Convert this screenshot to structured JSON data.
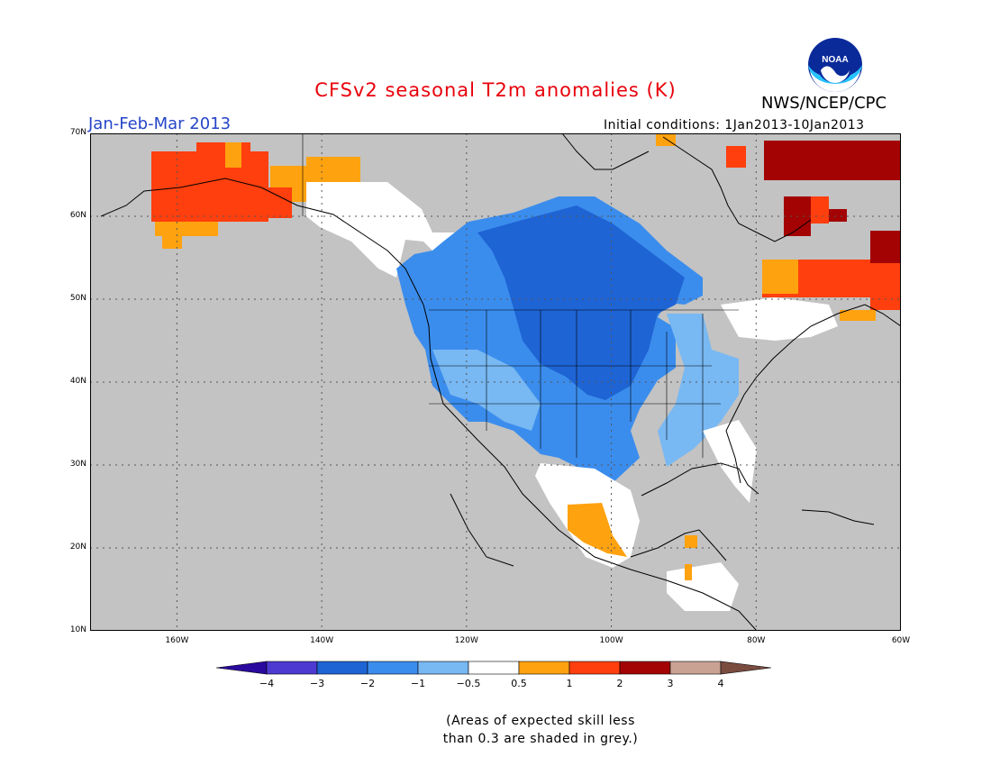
{
  "title": "CFSv2 seasonal T2m anomalies (K)",
  "period": "Jan-Feb-Mar 2013",
  "initial_conditions": "Initial conditions: 1Jan2013-10Jan2013",
  "agency": "NWS/NCEP/CPC",
  "logo_text": "NOAA",
  "map": {
    "lon_labels": [
      "160W",
      "140W",
      "120W",
      "100W",
      "80W",
      "60W"
    ],
    "lat_labels": [
      "70N",
      "60N",
      "50N",
      "40N",
      "30N",
      "20N",
      "10N"
    ],
    "lon_range": [
      -172,
      -60
    ],
    "lat_range": [
      10,
      70
    ],
    "grid": "dotted",
    "no_skill_color": "#c3c3c3",
    "land_line_color": "#000000"
  },
  "colorbar": {
    "labels": [
      "−4",
      "−3",
      "−2",
      "−1",
      "−0.5",
      "0.5",
      "1",
      "2",
      "3",
      "4"
    ],
    "colors": [
      "#2a0a9e",
      "#4d3ad0",
      "#1e64d4",
      "#3b8ded",
      "#78b8f3",
      "#ffffff",
      "#ffa20f",
      "#ff3f0e",
      "#a30303",
      "#c9a294",
      "#7a4c40"
    ]
  },
  "note_lines": [
    "(Areas of expected skill less",
    "than 0.3 are shaded in grey.)"
  ]
}
